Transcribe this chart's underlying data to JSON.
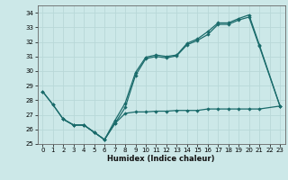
{
  "title": "",
  "xlabel": "Humidex (Indice chaleur)",
  "bg_color": "#cce8e8",
  "grid_color": "#b8d8d8",
  "line_color": "#1a6b6b",
  "xlim": [
    -0.5,
    23.5
  ],
  "ylim": [
    25,
    34.5
  ],
  "yticks": [
    25,
    26,
    27,
    28,
    29,
    30,
    31,
    32,
    33,
    34
  ],
  "xticks": [
    0,
    1,
    2,
    3,
    4,
    5,
    6,
    7,
    8,
    9,
    10,
    11,
    12,
    13,
    14,
    15,
    16,
    17,
    18,
    19,
    20,
    21,
    22,
    23
  ],
  "series": [
    {
      "x": [
        0,
        1,
        2,
        3,
        4,
        5,
        6,
        7,
        8,
        9,
        10,
        11,
        12,
        13,
        14,
        15,
        16,
        17,
        18,
        19,
        20,
        21,
        23
      ],
      "y": [
        28.6,
        27.7,
        26.7,
        26.3,
        26.3,
        25.8,
        25.3,
        26.4,
        27.5,
        29.7,
        30.85,
        31.0,
        30.9,
        31.05,
        31.8,
        32.1,
        32.5,
        33.2,
        33.2,
        33.5,
        33.7,
        31.7,
        27.6
      ]
    },
    {
      "x": [
        0,
        1,
        2,
        3,
        4,
        5,
        6,
        7,
        8,
        9,
        10,
        11,
        12,
        13,
        14,
        15,
        16,
        17,
        18,
        19,
        20,
        21,
        23
      ],
      "y": [
        28.6,
        27.7,
        26.7,
        26.3,
        26.3,
        25.8,
        25.3,
        26.6,
        27.8,
        29.9,
        30.95,
        31.1,
        31.0,
        31.1,
        31.9,
        32.2,
        32.7,
        33.3,
        33.3,
        33.6,
        33.85,
        31.8,
        27.6
      ]
    },
    {
      "x": [
        2,
        3,
        4,
        5,
        6,
        7,
        8,
        9,
        10,
        11,
        12,
        13,
        14,
        15,
        16,
        17,
        18,
        19,
        20,
        21,
        23
      ],
      "y": [
        26.7,
        26.3,
        26.3,
        25.8,
        25.3,
        26.4,
        27.1,
        27.2,
        27.2,
        27.25,
        27.25,
        27.3,
        27.3,
        27.3,
        27.4,
        27.4,
        27.4,
        27.4,
        27.4,
        27.4,
        27.6
      ]
    }
  ]
}
